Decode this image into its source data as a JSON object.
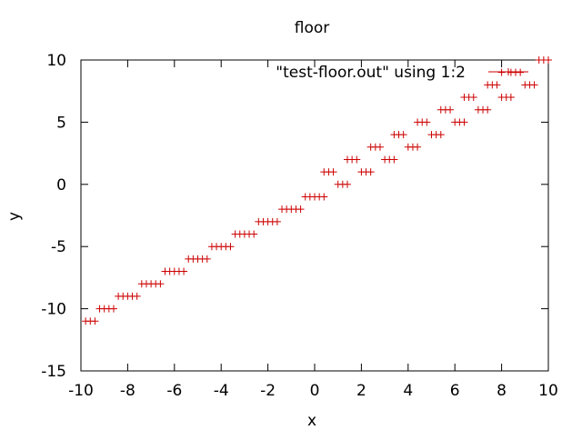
{
  "chart_data": {
    "type": "scatter",
    "title": "floor",
    "xlabel": "x",
    "ylabel": "y",
    "xlim": [
      -10,
      10
    ],
    "ylim": [
      -15,
      10
    ],
    "xticks": [
      -10,
      -8,
      -6,
      -4,
      -2,
      0,
      2,
      4,
      6,
      8,
      10
    ],
    "yticks": [
      -15,
      -10,
      -5,
      0,
      5,
      10
    ],
    "xtick_labels": [
      "-10",
      "-8",
      "-6",
      "-4",
      "-2",
      "0",
      "2",
      "4",
      "6",
      "8",
      "10"
    ],
    "ytick_labels": [
      "-15",
      "-10",
      "-5",
      "0",
      "5",
      "10"
    ],
    "grid": false,
    "legend_position": "top-right",
    "marker": "+",
    "colors": {
      "series": "#cc0000",
      "axes": "#000000",
      "background": "#ffffff"
    },
    "series": [
      {
        "name": "\"test-floor.out\" using 1:2",
        "points": [
          [
            -9.8,
            -11
          ],
          [
            -9.6,
            -11
          ],
          [
            -9.4,
            -11
          ],
          [
            -9.2,
            -10
          ],
          [
            -9.0,
            -10
          ],
          [
            -8.8,
            -10
          ],
          [
            -8.6,
            -10
          ],
          [
            -8.4,
            -9
          ],
          [
            -8.2,
            -9
          ],
          [
            -8.0,
            -9
          ],
          [
            -7.8,
            -9
          ],
          [
            -7.6,
            -9
          ],
          [
            -7.4,
            -8
          ],
          [
            -7.2,
            -8
          ],
          [
            -7.0,
            -8
          ],
          [
            -6.8,
            -8
          ],
          [
            -6.6,
            -8
          ],
          [
            -6.4,
            -7
          ],
          [
            -6.2,
            -7
          ],
          [
            -6.0,
            -7
          ],
          [
            -5.8,
            -7
          ],
          [
            -5.6,
            -7
          ],
          [
            -5.4,
            -6
          ],
          [
            -5.2,
            -6
          ],
          [
            -5.0,
            -6
          ],
          [
            -4.8,
            -6
          ],
          [
            -4.6,
            -6
          ],
          [
            -4.4,
            -5
          ],
          [
            -4.2,
            -5
          ],
          [
            -4.0,
            -5
          ],
          [
            -3.8,
            -5
          ],
          [
            -3.6,
            -5
          ],
          [
            -3.4,
            -4
          ],
          [
            -3.2,
            -4
          ],
          [
            -3.0,
            -4
          ],
          [
            -2.8,
            -4
          ],
          [
            -2.6,
            -4
          ],
          [
            -2.4,
            -3
          ],
          [
            -2.2,
            -3
          ],
          [
            -2.0,
            -3
          ],
          [
            -1.8,
            -3
          ],
          [
            -1.6,
            -3
          ],
          [
            -1.4,
            -2
          ],
          [
            -1.2,
            -2
          ],
          [
            -1.0,
            -2
          ],
          [
            -0.8,
            -2
          ],
          [
            -0.6,
            -2
          ],
          [
            -0.4,
            -1
          ],
          [
            -0.2,
            -1
          ],
          [
            0.0,
            -1
          ],
          [
            0.2,
            -1
          ],
          [
            0.4,
            -1
          ],
          [
            0.4,
            1
          ],
          [
            0.6,
            1
          ],
          [
            0.8,
            1
          ],
          [
            1.0,
            0
          ],
          [
            1.2,
            0
          ],
          [
            1.4,
            0
          ],
          [
            1.4,
            2
          ],
          [
            1.6,
            2
          ],
          [
            1.8,
            2
          ],
          [
            2.0,
            1
          ],
          [
            2.2,
            1
          ],
          [
            2.4,
            1
          ],
          [
            2.4,
            3
          ],
          [
            2.6,
            3
          ],
          [
            2.8,
            3
          ],
          [
            3.0,
            2
          ],
          [
            3.2,
            2
          ],
          [
            3.4,
            2
          ],
          [
            3.4,
            4
          ],
          [
            3.6,
            4
          ],
          [
            3.8,
            4
          ],
          [
            4.0,
            3
          ],
          [
            4.2,
            3
          ],
          [
            4.4,
            3
          ],
          [
            4.4,
            5
          ],
          [
            4.6,
            5
          ],
          [
            4.8,
            5
          ],
          [
            5.0,
            4
          ],
          [
            5.2,
            4
          ],
          [
            5.4,
            4
          ],
          [
            5.4,
            6
          ],
          [
            5.6,
            6
          ],
          [
            5.8,
            6
          ],
          [
            6.0,
            5
          ],
          [
            6.2,
            5
          ],
          [
            6.4,
            5
          ],
          [
            6.4,
            7
          ],
          [
            6.6,
            7
          ],
          [
            6.8,
            7
          ],
          [
            7.0,
            6
          ],
          [
            7.2,
            6
          ],
          [
            7.4,
            6
          ],
          [
            7.4,
            8
          ],
          [
            7.6,
            8
          ],
          [
            7.8,
            8
          ],
          [
            8.0,
            9
          ],
          [
            8.0,
            7
          ],
          [
            8.2,
            7
          ],
          [
            8.4,
            7
          ],
          [
            8.4,
            9
          ],
          [
            8.6,
            9
          ],
          [
            8.8,
            9
          ],
          [
            9.0,
            8
          ],
          [
            9.2,
            8
          ],
          [
            9.4,
            8
          ],
          [
            9.6,
            10
          ],
          [
            9.8,
            10
          ],
          [
            10.0,
            10
          ]
        ]
      }
    ]
  }
}
